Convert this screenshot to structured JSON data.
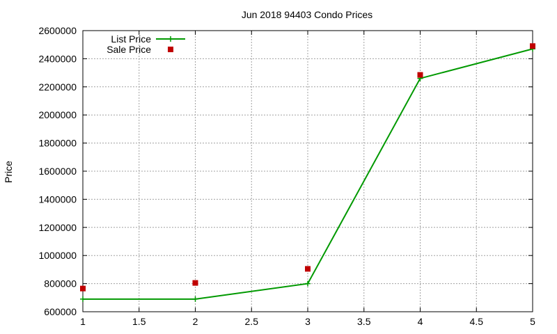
{
  "chart_data": {
    "type": "line",
    "title": "Jun 2018 94403 Condo Prices",
    "xlabel": "",
    "ylabel": "Price",
    "xlim": [
      1,
      5
    ],
    "ylim": [
      600000,
      2600000
    ],
    "x_ticks": [
      "1",
      "1.5",
      "2",
      "2.5",
      "3",
      "3.5",
      "4",
      "4.5",
      "5"
    ],
    "y_ticks": [
      "600000",
      "800000",
      "1000000",
      "1200000",
      "1400000",
      "1600000",
      "1800000",
      "2000000",
      "2200000",
      "2400000",
      "2600000"
    ],
    "grid": true,
    "legend_position": "top-left",
    "series": [
      {
        "name": "List Price",
        "style": "line-with-plus-markers",
        "color": "#009900",
        "x": [
          1,
          2,
          3,
          4,
          5
        ],
        "values": [
          690000,
          690000,
          800000,
          2260000,
          2470000
        ]
      },
      {
        "name": "Sale Price",
        "style": "square-markers",
        "color": "#c00000",
        "x": [
          1,
          2,
          3,
          4,
          5
        ],
        "values": [
          765000,
          805000,
          905000,
          2285000,
          2490000
        ]
      }
    ]
  }
}
